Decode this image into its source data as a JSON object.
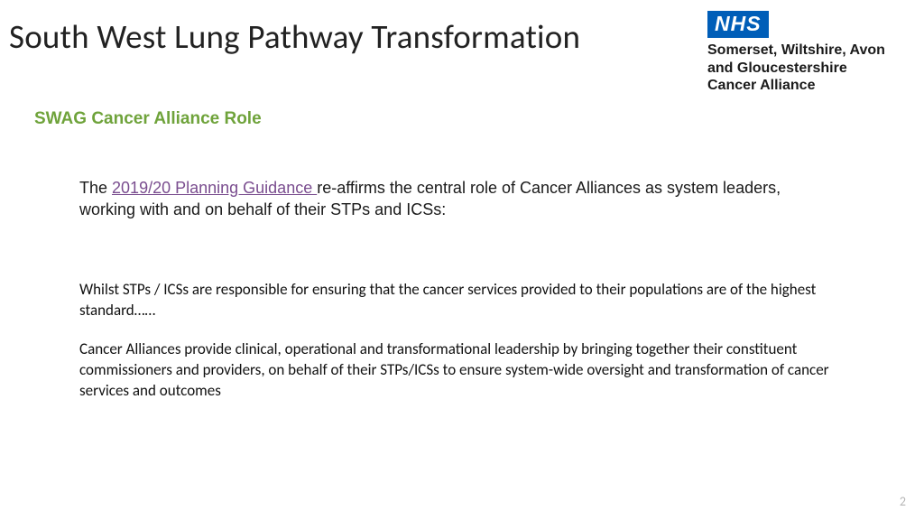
{
  "title": "South West Lung Pathway Transformation",
  "logo": {
    "badge": "NHS",
    "org_line1": "Somerset, Wiltshire, Avon",
    "org_line2": "and Gloucestershire",
    "org_line3": "Cancer Alliance"
  },
  "subheading": "SWAG Cancer Alliance Role",
  "intro": {
    "pre": "The ",
    "link_text": "2019/20 Planning Guidance ",
    "post": "re-affirms the central role of Cancer Alliances as system leaders, working with and on behalf of their STPs and ICSs:"
  },
  "body": {
    "p1": "Whilst STPs / ICSs are responsible for ensuring that the cancer services provided to their populations are of the highest standard……",
    "p2": "Cancer Alliances provide clinical, operational and transformational leadership by bringing together their constituent commissioners and providers, on behalf of their STPs/ICSs to ensure system-wide oversight and transformation of cancer services and outcomes"
  },
  "page_number": "2",
  "colors": {
    "nhs_blue": "#005eb8",
    "subheading_green": "#6fa33b",
    "link_purple": "#7a4d8f",
    "page_num_grey": "#b6b6b6",
    "text_black": "#1a1a1a",
    "background": "#ffffff"
  }
}
